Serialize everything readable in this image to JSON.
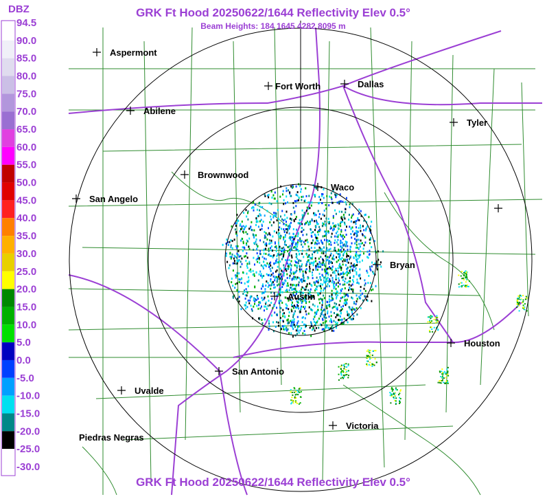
{
  "header": {
    "title": "GRK Ft Hood 20250622/1644 Reflectivity Elev 0.5°",
    "subtitle": "Beam Heights: 184 1645 4282 8095 m"
  },
  "legend": {
    "unit": "DBZ",
    "labels": [
      "94.5",
      "90.0",
      "85.0",
      "80.0",
      "75.0",
      "70.0",
      "65.0",
      "60.0",
      "55.0",
      "50.0",
      "45.0",
      "40.0",
      "35.0",
      "30.0",
      "25.0",
      "20.0",
      "15.0",
      "10.0",
      "5.0",
      "0.0",
      "-5.0",
      "-10.0",
      "-15.0",
      "-20.0",
      "-25.0",
      "-30.0"
    ]
  },
  "cities": [
    "Aspermont",
    "Abilene",
    "Fort Worth",
    "Dallas",
    "Tyler",
    "Brownwood",
    "Waco",
    "San Angelo",
    "Bryan",
    "Austin",
    "Houston",
    "San Antonio",
    "Uvalde",
    "Victoria",
    "Piedras Negras"
  ],
  "footer": {
    "title": "GRK Ft Hood 20250622/1644 Reflectivity Elev 0.5°"
  }
}
